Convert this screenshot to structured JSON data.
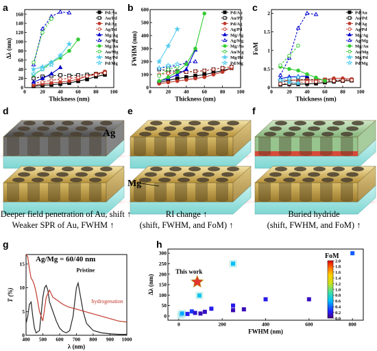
{
  "figure": {
    "panels": {
      "a": "a",
      "b": "b",
      "c": "c",
      "d": "d",
      "e": "e",
      "f": "f",
      "g": "g",
      "h": "h"
    },
    "sketch_labels": {
      "ag": "Ag",
      "mg": "Mg"
    },
    "captions": {
      "d1": "Deeper field penetration of Au, shift",
      "d2": "Weaker SPR of Au, FWHM",
      "e1": "RI change",
      "e2": "(shift, FWHM, and FoM)",
      "f1": "Buried hydride",
      "f2": "(shift, FWHM, and FoM)"
    },
    "arrow_glyph": "↑"
  },
  "chart_data": [
    {
      "panel": "a",
      "type": "line",
      "xlabel": "Thickness (nm)",
      "ylabel": "Δλ (nm)",
      "xlim": [
        0,
        100
      ],
      "ylim": [
        0,
        170
      ],
      "xticks": [
        0,
        20,
        40,
        60,
        80,
        100
      ],
      "yticks": [
        0,
        20,
        40,
        60,
        80,
        100,
        120,
        140,
        160
      ],
      "series": [
        {
          "name": "Pd/Au",
          "color": "#000000",
          "marker": "square",
          "fill": true,
          "dash": false,
          "x": [
            10,
            20,
            30,
            40,
            50,
            60,
            70,
            80,
            90
          ],
          "y": [
            3,
            5,
            6,
            8,
            10,
            14,
            18,
            24,
            28
          ]
        },
        {
          "name": "Au/Pd",
          "color": "#000000",
          "marker": "square",
          "fill": false,
          "dash": true,
          "x": [
            10,
            20,
            30,
            40,
            50,
            60,
            70,
            80,
            90
          ],
          "y": [
            20,
            24,
            26,
            27,
            26,
            27,
            28,
            30,
            33
          ]
        },
        {
          "name": "Pd/Ag",
          "color": "#c0392b",
          "marker": "circle",
          "fill": true,
          "dash": false,
          "x": [
            10,
            20,
            30,
            40,
            50,
            60,
            70,
            80,
            90
          ],
          "y": [
            5,
            8,
            10,
            12,
            14,
            18,
            25,
            30,
            35
          ]
        },
        {
          "name": "Ag/Pd",
          "color": "#c0392b",
          "marker": "circle",
          "fill": false,
          "dash": true,
          "x": [
            10,
            20,
            30,
            40,
            50,
            60,
            70,
            80,
            90
          ],
          "y": [
            10,
            12,
            16,
            18,
            20,
            22,
            25,
            28,
            32
          ]
        },
        {
          "name": "Mg/Ag",
          "color": "#0000cc",
          "marker": "triangle",
          "fill": true,
          "dash": false,
          "x": [
            10,
            20,
            30,
            40
          ],
          "y": [
            12,
            20,
            30,
            44
          ]
        },
        {
          "name": "Ag/Mg",
          "color": "#0000cc",
          "marker": "triangle",
          "fill": false,
          "dash": true,
          "x": [
            10,
            20,
            30,
            40,
            50
          ],
          "y": [
            50,
            128,
            155,
            165,
            163
          ]
        },
        {
          "name": "Mg/Au",
          "color": "#33cc33",
          "marker": "circle",
          "fill": true,
          "dash": false,
          "x": [
            10,
            20,
            30,
            40,
            50,
            60
          ],
          "y": [
            28,
            40,
            55,
            65,
            80,
            105
          ]
        },
        {
          "name": "Au/Mg",
          "color": "#33cc33",
          "marker": "circle",
          "fill": false,
          "dash": true,
          "x": [
            10,
            20,
            30
          ],
          "y": [
            55,
            120,
            150
          ]
        },
        {
          "name": "Mg/Pd",
          "color": "#55ccee",
          "marker": "star",
          "fill": true,
          "dash": false,
          "x": [
            10,
            20,
            30,
            40,
            50
          ],
          "y": [
            40,
            45,
            55,
            70,
            95
          ]
        },
        {
          "name": "Pd/Mg",
          "color": "#55ccee",
          "marker": "star",
          "fill": false,
          "dash": true,
          "x": [
            10,
            20,
            30
          ],
          "y": [
            30,
            40,
            50
          ]
        }
      ]
    },
    {
      "panel": "b",
      "type": "line",
      "xlabel": "Thickness (nm)",
      "ylabel": "FWHM (nm)",
      "xlim": [
        0,
        100
      ],
      "ylim": [
        0,
        600
      ],
      "xticks": [
        0,
        20,
        40,
        60,
        80,
        100
      ],
      "yticks": [
        0,
        100,
        200,
        300,
        400,
        500,
        600
      ],
      "series": [
        {
          "name": "Pd/Au",
          "color": "#000000",
          "marker": "square",
          "fill": true,
          "dash": false,
          "x": [
            10,
            20,
            30,
            40,
            50,
            60,
            70,
            80,
            90
          ],
          "y": [
            40,
            55,
            70,
            80,
            90,
            100,
            115,
            130,
            150
          ]
        },
        {
          "name": "Au/Pd",
          "color": "#000000",
          "marker": "square",
          "fill": false,
          "dash": true,
          "x": [
            10,
            20,
            30,
            40,
            50,
            60,
            70,
            80,
            90
          ],
          "y": [
            140,
            130,
            125,
            120,
            125,
            130,
            140,
            150,
            160
          ]
        },
        {
          "name": "Pd/Ag",
          "color": "#c0392b",
          "marker": "circle",
          "fill": true,
          "dash": false,
          "x": [
            10,
            20,
            30,
            40,
            50,
            60,
            70,
            80,
            90
          ],
          "y": [
            30,
            40,
            50,
            60,
            70,
            80,
            100,
            120,
            150
          ]
        },
        {
          "name": "Ag/Pd",
          "color": "#c0392b",
          "marker": "circle",
          "fill": false,
          "dash": true,
          "x": [
            10,
            20,
            30,
            40,
            50,
            60,
            70,
            80,
            90
          ],
          "y": [
            100,
            110,
            115,
            120,
            125,
            130,
            140,
            150,
            160
          ]
        },
        {
          "name": "Mg/Ag",
          "color": "#0000cc",
          "marker": "triangle",
          "fill": true,
          "dash": false,
          "x": [
            10,
            20,
            30,
            40,
            50
          ],
          "y": [
            50,
            70,
            100,
            140,
            290
          ]
        },
        {
          "name": "Ag/Mg",
          "color": "#0000cc",
          "marker": "triangle",
          "fill": false,
          "dash": true,
          "x": [
            10,
            20,
            30,
            40,
            50
          ],
          "y": [
            150,
            160,
            170,
            190,
            200
          ]
        },
        {
          "name": "Mg/Au",
          "color": "#33cc33",
          "marker": "circle",
          "fill": true,
          "dash": false,
          "x": [
            10,
            20,
            30,
            40,
            50,
            60
          ],
          "y": [
            50,
            80,
            120,
            180,
            300,
            570
          ]
        },
        {
          "name": "Au/Mg",
          "color": "#33cc33",
          "marker": "circle",
          "fill": false,
          "dash": true,
          "x": [
            10,
            20,
            30
          ],
          "y": [
            90,
            140,
            160
          ]
        },
        {
          "name": "Mg/Pd",
          "color": "#55ccee",
          "marker": "star",
          "fill": true,
          "dash": false,
          "x": [
            10,
            20,
            30
          ],
          "y": [
            200,
            320,
            450
          ]
        },
        {
          "name": "Pd/Mg",
          "color": "#55ccee",
          "marker": "star",
          "fill": false,
          "dash": true,
          "x": [
            10,
            20,
            30
          ],
          "y": [
            150,
            170,
            180
          ]
        }
      ]
    },
    {
      "panel": "c",
      "type": "line",
      "xlabel": "Thickness (nm)",
      "ylabel": "FoM",
      "xlim": [
        0,
        100
      ],
      "ylim": [
        0,
        2.1
      ],
      "xticks": [
        0,
        20,
        40,
        60,
        80,
        100
      ],
      "yticks": [
        0,
        0.5,
        1.0,
        1.5,
        2.0
      ],
      "series": [
        {
          "name": "Pd/Au",
          "color": "#000000",
          "marker": "square",
          "fill": true,
          "dash": false,
          "x": [
            10,
            20,
            30,
            40,
            50,
            60,
            70,
            80,
            90
          ],
          "y": [
            0.08,
            0.09,
            0.09,
            0.1,
            0.11,
            0.14,
            0.16,
            0.18,
            0.19
          ]
        },
        {
          "name": "Au/Pd",
          "color": "#000000",
          "marker": "square",
          "fill": false,
          "dash": true,
          "x": [
            10,
            20,
            30,
            40,
            50,
            60,
            70,
            80,
            90
          ],
          "y": [
            0.14,
            0.18,
            0.21,
            0.22,
            0.21,
            0.21,
            0.2,
            0.2,
            0.21
          ]
        },
        {
          "name": "Pd/Ag",
          "color": "#c0392b",
          "marker": "circle",
          "fill": true,
          "dash": false,
          "x": [
            10,
            20,
            30,
            40,
            50,
            60,
            70,
            80,
            90
          ],
          "y": [
            0.17,
            0.2,
            0.2,
            0.2,
            0.2,
            0.22,
            0.25,
            0.25,
            0.23
          ]
        },
        {
          "name": "Ag/Pd",
          "color": "#c0392b",
          "marker": "circle",
          "fill": false,
          "dash": true,
          "x": [
            10,
            20,
            30,
            40,
            50,
            60,
            70,
            80,
            90
          ],
          "y": [
            0.1,
            0.11,
            0.14,
            0.15,
            0.16,
            0.17,
            0.18,
            0.19,
            0.2
          ]
        },
        {
          "name": "Mg/Ag",
          "color": "#0000cc",
          "marker": "triangle",
          "fill": true,
          "dash": false,
          "x": [
            10,
            20,
            30,
            40
          ],
          "y": [
            0.24,
            0.29,
            0.3,
            0.31
          ]
        },
        {
          "name": "Ag/Mg",
          "color": "#0000cc",
          "marker": "triangle",
          "fill": false,
          "dash": true,
          "x": [
            10,
            20,
            30,
            40,
            50
          ],
          "y": [
            0.33,
            0.8,
            1.6,
            2.0,
            1.97
          ]
        },
        {
          "name": "Mg/Au",
          "color": "#33cc33",
          "marker": "circle",
          "fill": true,
          "dash": false,
          "x": [
            10,
            20,
            30,
            40,
            50,
            60
          ],
          "y": [
            0.56,
            0.5,
            0.46,
            0.36,
            0.27,
            0.18
          ]
        },
        {
          "name": "Au/Mg",
          "color": "#33cc33",
          "marker": "circle",
          "fill": false,
          "dash": true,
          "x": [
            10,
            20,
            30
          ],
          "y": [
            0.6,
            0.86,
            1.13
          ]
        },
        {
          "name": "Mg/Pd",
          "color": "#55ccee",
          "marker": "star",
          "fill": true,
          "dash": false,
          "x": [
            10,
            20,
            30
          ],
          "y": [
            0.2,
            0.14,
            0.12
          ]
        },
        {
          "name": "Pd/Mg",
          "color": "#55ccee",
          "marker": "star",
          "fill": false,
          "dash": true,
          "x": [
            10,
            20,
            30
          ],
          "y": [
            0.2,
            0.24,
            0.28
          ]
        }
      ]
    },
    {
      "panel": "g",
      "type": "line",
      "title": "Ag/Mg = 60/40 nm",
      "xlabel": "λ (nm)",
      "ylabel": "T (%)",
      "xlim": [
        400,
        1000
      ],
      "ylim": [
        0,
        17
      ],
      "xticks": [
        400,
        500,
        600,
        700,
        800,
        900,
        1000
      ],
      "yticks": [
        0,
        5,
        10,
        15
      ],
      "annotations": [
        "Pristine",
        "hydrogenation"
      ],
      "series": [
        {
          "name": "Pristine",
          "color": "#222222",
          "x": [
            400,
            410,
            420,
            430,
            440,
            450,
            460,
            480,
            500,
            510,
            520,
            530,
            540,
            560,
            580,
            600,
            620,
            640,
            660,
            680,
            690,
            700,
            710,
            720,
            740,
            760,
            800,
            850,
            900,
            950,
            1000
          ],
          "y": [
            2.5,
            4,
            6.5,
            7,
            4,
            1.5,
            0.5,
            1,
            8,
            10,
            10.5,
            9.5,
            7,
            5,
            3,
            1.5,
            0.8,
            0.5,
            1,
            4,
            7,
            10,
            11,
            9,
            5,
            2.5,
            1,
            0.5,
            0.3,
            0.2,
            0.2
          ]
        },
        {
          "name": "hydrogenation",
          "color": "#c0392b",
          "x": [
            400,
            410,
            420,
            430,
            440,
            450,
            460,
            480,
            500,
            520,
            540,
            560,
            580,
            600,
            620,
            650,
            700,
            750,
            800,
            850,
            900,
            950,
            1000
          ],
          "y": [
            17,
            16.5,
            14,
            12,
            11.5,
            10.5,
            9,
            5,
            3,
            8,
            9.5,
            8,
            7.5,
            7,
            6.5,
            6,
            5.5,
            5,
            4.5,
            4,
            3.5,
            3,
            2.8
          ]
        }
      ]
    },
    {
      "panel": "h",
      "type": "scatter",
      "xlabel": "FWHM (nm)",
      "ylabel": "Δλ (nm)",
      "xlim": [
        -50,
        850
      ],
      "ylim": [
        -20,
        320
      ],
      "xticks": [
        0,
        200,
        400,
        600,
        800
      ],
      "yticks": [
        0,
        50,
        100,
        150,
        200,
        250,
        300
      ],
      "colorbar": {
        "label": "FoM",
        "min": 0,
        "max": 2.0,
        "ticks": [
          0.0,
          0.2,
          0.4,
          0.6,
          0.8,
          1.0,
          1.2,
          1.4,
          1.6,
          1.8,
          2.0
        ]
      },
      "highlight": {
        "label": "This work",
        "x": 85,
        "y": 163,
        "fom": 1.95
      },
      "points": [
        {
          "x": 10,
          "y": 5,
          "fom": 0.5
        },
        {
          "x": 15,
          "y": 12,
          "fom": 0.55
        },
        {
          "x": 40,
          "y": 10,
          "fom": 0.2
        },
        {
          "x": 60,
          "y": 22,
          "fom": 0.3
        },
        {
          "x": 75,
          "y": 15,
          "fom": 0.15
        },
        {
          "x": 95,
          "y": 98,
          "fom": 0.65
        },
        {
          "x": 100,
          "y": 12,
          "fom": 0.1
        },
        {
          "x": 120,
          "y": 20,
          "fom": 0.12
        },
        {
          "x": 150,
          "y": 35,
          "fom": 0.2
        },
        {
          "x": 250,
          "y": 250,
          "fom": 0.6
        },
        {
          "x": 250,
          "y": 50,
          "fom": 0.2
        },
        {
          "x": 250,
          "y": 28,
          "fom": 0.1
        },
        {
          "x": 300,
          "y": 32,
          "fom": 0.1
        },
        {
          "x": 400,
          "y": 80,
          "fom": 0.2
        },
        {
          "x": 600,
          "y": 80,
          "fom": 0.12
        },
        {
          "x": 800,
          "y": 300,
          "fom": 0.38
        }
      ]
    }
  ]
}
